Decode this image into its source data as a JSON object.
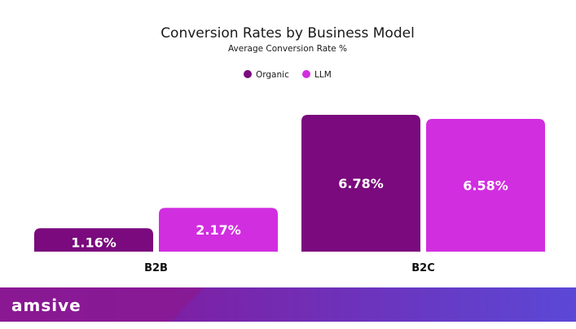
{
  "colors": {
    "organic": "#7a0a7d",
    "llm": "#d12ee0",
    "footer_dark": "#8b0f8f",
    "footer_light": "#5b48d6"
  },
  "chart_data": {
    "type": "bar",
    "title": "Conversion Rates by Business Model",
    "subtitle": "Average Conversion Rate %",
    "legend_position": "top-center",
    "grid": false,
    "ylim": [
      0,
      7
    ],
    "categories": [
      "B2B",
      "B2C"
    ],
    "series": [
      {
        "name": "Organic",
        "values": [
          1.16,
          6.78
        ],
        "labels": [
          "1.16%",
          "6.78%"
        ]
      },
      {
        "name": "LLM",
        "values": [
          2.17,
          6.58
        ],
        "labels": [
          "2.17%",
          "6.58%"
        ]
      }
    ]
  },
  "footer": {
    "logo_text": "amsive",
    "logo_icon": "amsive-wordmark"
  }
}
